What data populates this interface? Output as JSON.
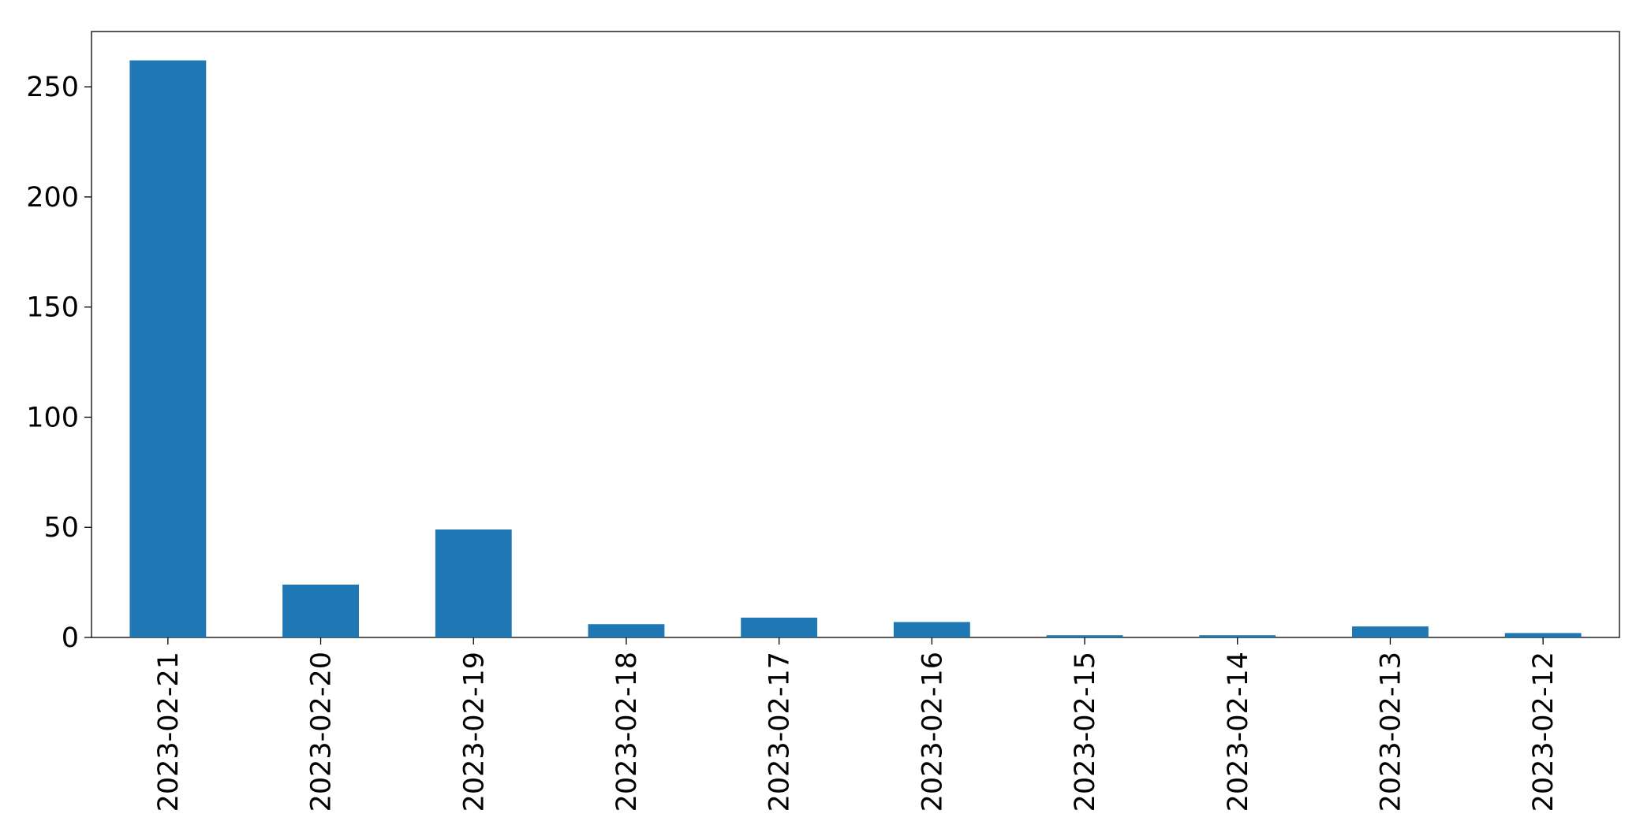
{
  "chart_data": {
    "type": "bar",
    "categories": [
      "2023-02-21",
      "2023-02-20",
      "2023-02-19",
      "2023-02-18",
      "2023-02-17",
      "2023-02-16",
      "2023-02-15",
      "2023-02-14",
      "2023-02-13",
      "2023-02-12"
    ],
    "values": [
      262,
      24,
      49,
      6,
      9,
      7,
      1,
      1,
      5,
      2
    ],
    "color": "#1f77b4",
    "ylim": [
      0,
      275.1
    ],
    "yticks": [
      0,
      50,
      100,
      150,
      200,
      250
    ],
    "grid": false
  }
}
